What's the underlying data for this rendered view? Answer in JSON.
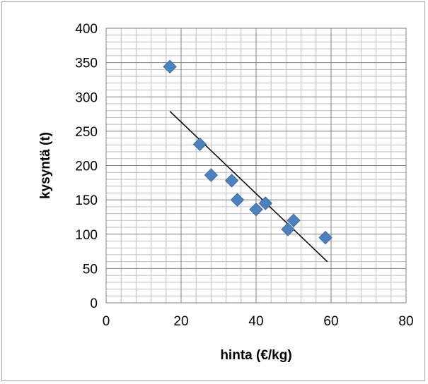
{
  "chart_data": {
    "type": "scatter",
    "title": "",
    "xlabel": "hinta (€/kg)",
    "ylabel": "kysyntä (t)",
    "xlim": [
      0,
      80
    ],
    "ylim": [
      0,
      400
    ],
    "x_ticks": [
      "0",
      "20",
      "40",
      "60",
      "80"
    ],
    "y_ticks": [
      "0",
      "50",
      "100",
      "150",
      "200",
      "250",
      "300",
      "350",
      "400"
    ],
    "grid": true,
    "legend": "none",
    "marker": "diamond",
    "marker_color": "#4f81bd",
    "trendline_color": "#000000",
    "series": [
      {
        "x": [
          17,
          25,
          28,
          33.5,
          35,
          40,
          42.5,
          48.5,
          50,
          58.5
        ],
        "y": [
          344,
          231,
          186,
          178,
          150,
          136,
          145,
          107,
          120,
          95
        ]
      }
    ],
    "trendline": {
      "x": [
        17,
        59
      ],
      "y": [
        279,
        60
      ]
    }
  }
}
